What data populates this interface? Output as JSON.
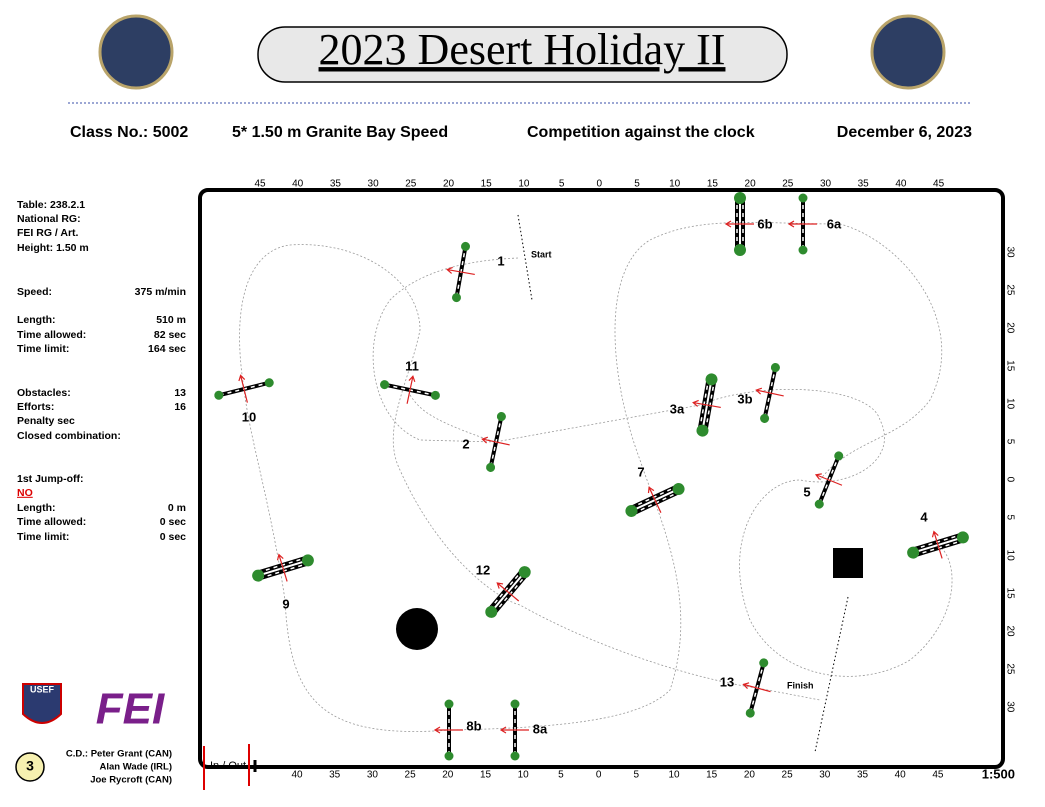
{
  "header": {
    "title": "2023 Desert Holiday II",
    "class_no": "Class No.: 5002",
    "class_name": "5* 1.50 m Granite Bay Speed",
    "competition": "Competition against the clock",
    "date": "December 6, 2023"
  },
  "info": [
    {
      "label": "Table: 238.2.1"
    },
    {
      "label": "National RG:"
    },
    {
      "label": "FEI RG / Art."
    },
    {
      "label": "Height: 1.50  m"
    },
    {
      "label": "Speed:",
      "value": "375  m/min"
    },
    {
      "label": "Length:",
      "value": "510   m"
    },
    {
      "label": "Time allowed:",
      "value": "82  sec"
    },
    {
      "label": "Time limit:",
      "value": "164  sec"
    },
    {
      "label": "Obstacles:",
      "value": "13"
    },
    {
      "label": "Efforts:",
      "value": "16"
    },
    {
      "label": "Penalty sec"
    },
    {
      "label": "Closed combination:"
    },
    {
      "label": "1st Jump-off:"
    },
    {
      "label": "NO"
    },
    {
      "label": "Length:",
      "value": "0   m"
    },
    {
      "label": "Time allowed:",
      "value": "0  sec"
    },
    {
      "label": "Time limit:",
      "value": "0  sec"
    }
  ],
  "ruler": {
    "top": [
      45,
      40,
      35,
      30,
      25,
      20,
      15,
      10,
      5,
      0,
      5,
      10,
      15,
      20,
      25,
      30,
      35,
      40,
      45
    ],
    "bottom": [
      40,
      35,
      30,
      25,
      20,
      15,
      10,
      5,
      0,
      5,
      10,
      15,
      20,
      25,
      30,
      35,
      40,
      45
    ],
    "right": [
      30,
      25,
      20,
      15,
      10,
      5,
      0,
      5,
      10,
      15,
      20,
      25,
      30
    ]
  },
  "course": {
    "obstacles": [
      "1",
      "2",
      "3a",
      "3b",
      "4",
      "5",
      "6a",
      "6b",
      "7",
      "8a",
      "8b",
      "9",
      "10",
      "11",
      "12",
      "13"
    ],
    "start": "Start",
    "finish": "Finish",
    "in_out": "In / Out",
    "scale": "1:500"
  },
  "footer": {
    "page": "3",
    "designers": [
      "C.D.: Peter Grant (CAN)",
      "Alan Wade (IRL)",
      "Joe Rycroft (CAN)"
    ],
    "logo_usef": "USEF",
    "logo_fei": "FEI"
  }
}
